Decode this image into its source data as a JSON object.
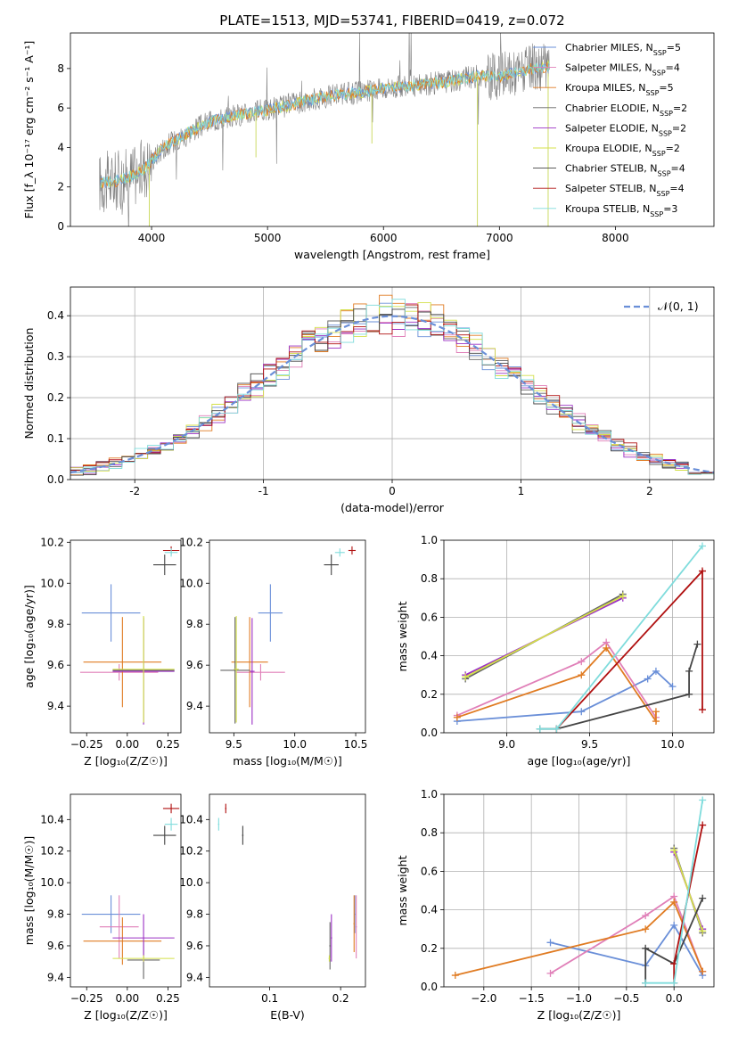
{
  "colors": {
    "chabrier_miles": "#6a8fd8",
    "salpeter_miles": "#e07fb8",
    "kroupa_miles": "#e07b22",
    "chabrier_elodie": "#666666",
    "salpeter_elodie": "#9b30c4",
    "kroupa_elodie": "#d4e04a",
    "chabrier_stelib": "#444444",
    "salpeter_stelib": "#b01010",
    "kroupa_stelib": "#7fdcdc",
    "gauss": "#6a8fd8",
    "grid": "#b0b0b0",
    "spectrum": "#808080"
  },
  "chart_data": [
    {
      "id": "spectrum",
      "type": "line",
      "title": "PLATE=1513, MJD=53741, FIBERID=0419, z=0.072",
      "xlabel": "wavelength [Angstrom, rest frame]",
      "ylabel": "Flux [f_λ 10⁻¹⁷ erg cm⁻² s⁻¹ A⁻¹]",
      "xlim": [
        3300,
        8850
      ],
      "ylim": [
        0,
        9.8
      ],
      "xticks": [
        4000,
        5000,
        6000,
        7000,
        8000
      ],
      "yticks": [
        0,
        2,
        4,
        6,
        8
      ],
      "legend_position": "top-right",
      "legend": [
        {
          "label": "Chabrier MILES, N",
          "sub": "SSP",
          "suffix": "=5",
          "color_key": "chabrier_miles"
        },
        {
          "label": "Salpeter MILES, N",
          "sub": "SSP",
          "suffix": "=4",
          "color_key": "salpeter_miles"
        },
        {
          "label": "Kroupa MILES, N",
          "sub": "SSP",
          "suffix": "=5",
          "color_key": "kroupa_miles"
        },
        {
          "label": "Chabrier ELODIE, N",
          "sub": "SSP",
          "suffix": "=2",
          "color_key": "chabrier_elodie"
        },
        {
          "label": "Salpeter ELODIE, N",
          "sub": "SSP",
          "suffix": "=2",
          "color_key": "salpeter_elodie"
        },
        {
          "label": "Kroupa ELODIE, N",
          "sub": "SSP",
          "suffix": "=2",
          "color_key": "kroupa_elodie"
        },
        {
          "label": "Chabrier STELIB, N",
          "sub": "SSP",
          "suffix": "=4",
          "color_key": "chabrier_stelib"
        },
        {
          "label": "Salpeter STELIB, N",
          "sub": "SSP",
          "suffix": "=4",
          "color_key": "salpeter_stelib"
        },
        {
          "label": "Kroupa STELIB, N",
          "sub": "SSP",
          "suffix": "=3",
          "color_key": "kroupa_stelib"
        }
      ],
      "continuum": [
        [
          3550,
          2.2
        ],
        [
          3700,
          2.3
        ],
        [
          3850,
          2.6
        ],
        [
          3950,
          3.0
        ],
        [
          4100,
          4.0
        ],
        [
          4300,
          4.7
        ],
        [
          4500,
          5.3
        ],
        [
          4700,
          5.6
        ],
        [
          5000,
          5.9
        ],
        [
          5300,
          6.3
        ],
        [
          5500,
          6.6
        ],
        [
          5800,
          6.8
        ],
        [
          6000,
          7.0
        ],
        [
          6200,
          7.1
        ],
        [
          6500,
          7.3
        ],
        [
          6800,
          7.6
        ],
        [
          7000,
          7.6
        ],
        [
          7200,
          7.9
        ],
        [
          7430,
          8.1
        ]
      ]
    },
    {
      "id": "residuals",
      "type": "line",
      "xlabel": "(data-model)/error",
      "ylabel": "Normed distribution",
      "xlim": [
        -2.5,
        2.5
      ],
      "ylim": [
        0,
        0.47
      ],
      "xticks": [
        -2,
        -1,
        0,
        1,
        2
      ],
      "yticks": [
        0.0,
        0.1,
        0.2,
        0.3,
        0.4
      ],
      "grid": true,
      "legend_position": "top-right",
      "legend_label": "𝒩(0, 1)",
      "histogram": {
        "bin_width": 0.1,
        "mean": 0.0,
        "sigma": 1.0
      }
    },
    {
      "id": "age_vs_Z",
      "type": "scatter",
      "xlabel": "Z [log₁₀(Z/Z☉)]",
      "ylabel": "age  [log₁₀(age/yr)]",
      "xlim": [
        -0.35,
        0.33
      ],
      "ylim": [
        9.27,
        10.21
      ],
      "xticks": [
        -0.25,
        0.0,
        0.25
      ],
      "xticklabels": [
        "−0.25",
        "0.00",
        "0.25"
      ],
      "yticks": [
        9.4,
        9.6,
        9.8,
        10.0,
        10.2
      ],
      "points": [
        {
          "color_key": "chabrier_miles",
          "x": -0.1,
          "xerr": 0.18,
          "y": 9.855,
          "yerr": 0.14
        },
        {
          "color_key": "salpeter_miles",
          "x": -0.05,
          "xerr": 0.24,
          "y": 9.565,
          "yerr": 0.04
        },
        {
          "color_key": "kroupa_miles",
          "x": -0.03,
          "xerr": 0.24,
          "y": 9.615,
          "yerr": 0.22
        },
        {
          "color_key": "chabrier_elodie",
          "x": 0.1,
          "xerr": 0.19,
          "y": 9.575,
          "yerr": 0.26
        },
        {
          "color_key": "salpeter_elodie",
          "x": 0.1,
          "xerr": 0.19,
          "y": 9.57,
          "yerr": 0.26
        },
        {
          "color_key": "kroupa_elodie",
          "x": 0.1,
          "xerr": 0.19,
          "y": 9.58,
          "yerr": 0.26
        },
        {
          "color_key": "chabrier_stelib",
          "x": 0.23,
          "xerr": 0.07,
          "y": 10.09,
          "yerr": 0.05
        },
        {
          "color_key": "salpeter_stelib",
          "x": 0.27,
          "xerr": 0.05,
          "y": 10.16,
          "yerr": 0.02
        },
        {
          "color_key": "kroupa_stelib",
          "x": 0.27,
          "xerr": 0.04,
          "y": 10.15,
          "yerr": 0.02
        }
      ]
    },
    {
      "id": "age_vs_mass",
      "type": "scatter",
      "xlabel": "mass [log₁₀(M/M☉)]",
      "ylabel": "",
      "xlim": [
        9.3,
        10.58
      ],
      "ylim": [
        9.27,
        10.21
      ],
      "xticks": [
        9.5,
        10.0,
        10.5
      ],
      "yticks": [
        9.4,
        9.6,
        9.8,
        10.0,
        10.2
      ],
      "points": [
        {
          "color_key": "chabrier_miles",
          "x": 9.8,
          "xerr": 0.1,
          "y": 9.855,
          "yerr": 0.14
        },
        {
          "color_key": "salpeter_miles",
          "x": 9.72,
          "xerr": 0.2,
          "y": 9.565,
          "yerr": 0.04
        },
        {
          "color_key": "kroupa_miles",
          "x": 9.63,
          "xerr": 0.15,
          "y": 9.615,
          "yerr": 0.22
        },
        {
          "color_key": "chabrier_elodie",
          "x": 9.51,
          "xerr": 0.12,
          "y": 9.575,
          "yerr": 0.26
        },
        {
          "color_key": "salpeter_elodie",
          "x": 9.65,
          "xerr": 0.02,
          "y": 9.57,
          "yerr": 0.26
        },
        {
          "color_key": "kroupa_elodie",
          "x": 9.52,
          "xerr": 0.02,
          "y": 9.58,
          "yerr": 0.26
        },
        {
          "color_key": "chabrier_stelib",
          "x": 10.3,
          "xerr": 0.06,
          "y": 10.09,
          "yerr": 0.05
        },
        {
          "color_key": "salpeter_stelib",
          "x": 10.47,
          "xerr": 0.03,
          "y": 10.16,
          "yerr": 0.02
        },
        {
          "color_key": "kroupa_stelib",
          "x": 10.37,
          "xerr": 0.04,
          "y": 10.15,
          "yerr": 0.02
        }
      ]
    },
    {
      "id": "massweight_vs_age",
      "type": "line",
      "xlabel": "age  [log₁₀(age/yr)]",
      "ylabel": "mass weight",
      "xlim": [
        8.62,
        10.25
      ],
      "ylim": [
        0,
        1.0
      ],
      "xticks": [
        9.0,
        9.5,
        10.0
      ],
      "yticks": [
        0.0,
        0.2,
        0.4,
        0.6,
        0.8,
        1.0
      ],
      "grid": true,
      "series": [
        {
          "color_key": "chabrier_miles",
          "points": [
            [
              8.7,
              0.06
            ],
            [
              9.45,
              0.11
            ],
            [
              9.85,
              0.28
            ],
            [
              9.9,
              0.32
            ],
            [
              10.0,
              0.24
            ]
          ]
        },
        {
          "color_key": "salpeter_miles",
          "points": [
            [
              8.7,
              0.09
            ],
            [
              9.45,
              0.37
            ],
            [
              9.6,
              0.47
            ],
            [
              9.9,
              0.08
            ]
          ]
        },
        {
          "color_key": "kroupa_miles",
          "points": [
            [
              8.7,
              0.08
            ],
            [
              9.45,
              0.3
            ],
            [
              9.6,
              0.44
            ],
            [
              9.9,
              0.06
            ],
            [
              9.9,
              0.11
            ]
          ]
        },
        {
          "color_key": "chabrier_elodie",
          "points": [
            [
              8.75,
              0.28
            ],
            [
              9.7,
              0.72
            ]
          ]
        },
        {
          "color_key": "salpeter_elodie",
          "points": [
            [
              8.75,
              0.3
            ],
            [
              9.7,
              0.7
            ]
          ]
        },
        {
          "color_key": "kroupa_elodie",
          "points": [
            [
              8.75,
              0.29
            ],
            [
              9.7,
              0.71
            ]
          ]
        },
        {
          "color_key": "chabrier_stelib",
          "points": [
            [
              9.2,
              0.02
            ],
            [
              9.3,
              0.02
            ],
            [
              10.1,
              0.2
            ],
            [
              10.1,
              0.32
            ],
            [
              10.15,
              0.46
            ]
          ]
        },
        {
          "color_key": "salpeter_stelib",
          "points": [
            [
              9.3,
              0.02
            ],
            [
              10.18,
              0.84
            ],
            [
              10.18,
              0.12
            ]
          ]
        },
        {
          "color_key": "kroupa_stelib",
          "points": [
            [
              9.2,
              0.02
            ],
            [
              9.3,
              0.02
            ],
            [
              10.18,
              0.97
            ]
          ]
        }
      ]
    },
    {
      "id": "mass_vs_Z",
      "type": "scatter",
      "xlabel": "Z [log₁₀(Z/Z☉)]",
      "ylabel": "mass [log₁₀(M/M☉)]",
      "xlim": [
        -0.35,
        0.33
      ],
      "ylim": [
        9.34,
        10.56
      ],
      "xticks": [
        -0.25,
        0.0,
        0.25
      ],
      "xticklabels": [
        "−0.25",
        "0.00",
        "0.25"
      ],
      "yticks": [
        9.4,
        9.6,
        9.8,
        10.0,
        10.2,
        10.4
      ],
      "points": [
        {
          "color_key": "chabrier_miles",
          "x": -0.1,
          "xerr": 0.18,
          "y": 9.8,
          "yerr": 0.12
        },
        {
          "color_key": "salpeter_miles",
          "x": -0.05,
          "xerr": 0.12,
          "y": 9.72,
          "yerr": 0.2
        },
        {
          "color_key": "kroupa_miles",
          "x": -0.03,
          "xerr": 0.24,
          "y": 9.63,
          "yerr": 0.15
        },
        {
          "color_key": "chabrier_elodie",
          "x": 0.1,
          "xerr": 0.1,
          "y": 9.51,
          "yerr": 0.12
        },
        {
          "color_key": "salpeter_elodie",
          "x": 0.1,
          "xerr": 0.19,
          "y": 9.65,
          "yerr": 0.15
        },
        {
          "color_key": "kroupa_elodie",
          "x": 0.1,
          "xerr": 0.19,
          "y": 9.52,
          "yerr": 0.02
        },
        {
          "color_key": "chabrier_stelib",
          "x": 0.23,
          "xerr": 0.07,
          "y": 10.3,
          "yerr": 0.06
        },
        {
          "color_key": "salpeter_stelib",
          "x": 0.27,
          "xerr": 0.05,
          "y": 10.47,
          "yerr": 0.03
        },
        {
          "color_key": "kroupa_stelib",
          "x": 0.27,
          "xerr": 0.04,
          "y": 10.37,
          "yerr": 0.04
        }
      ]
    },
    {
      "id": "mass_vs_ebv",
      "type": "scatter",
      "xlabel": "E(B-V)",
      "ylabel": "",
      "xlim": [
        0.015,
        0.235
      ],
      "ylim": [
        9.34,
        10.56
      ],
      "xticks": [
        0.1,
        0.2
      ],
      "yticks": [
        9.4,
        9.6,
        9.8,
        10.0,
        10.2,
        10.4
      ],
      "points": [
        {
          "color_key": "chabrier_miles",
          "x": 0.22,
          "xerr": 0.001,
          "y": 9.8,
          "yerr": 0.12
        },
        {
          "color_key": "salpeter_miles",
          "x": 0.222,
          "xerr": 0.001,
          "y": 9.72,
          "yerr": 0.2
        },
        {
          "color_key": "kroupa_miles",
          "x": 0.219,
          "xerr": 0.001,
          "y": 9.74,
          "yerr": 0.18
        },
        {
          "color_key": "chabrier_elodie",
          "x": 0.185,
          "xerr": 0.001,
          "y": 9.6,
          "yerr": 0.15
        },
        {
          "color_key": "salpeter_elodie",
          "x": 0.187,
          "xerr": 0.001,
          "y": 9.65,
          "yerr": 0.15
        },
        {
          "color_key": "kroupa_elodie",
          "x": 0.184,
          "xerr": 0.001,
          "y": 9.52,
          "yerr": 0.02
        },
        {
          "color_key": "chabrier_stelib",
          "x": 0.062,
          "xerr": 0.001,
          "y": 10.3,
          "yerr": 0.06
        },
        {
          "color_key": "salpeter_stelib",
          "x": 0.038,
          "xerr": 0.001,
          "y": 10.47,
          "yerr": 0.03
        },
        {
          "color_key": "kroupa_stelib",
          "x": 0.028,
          "xerr": 0.001,
          "y": 10.37,
          "yerr": 0.04
        }
      ]
    },
    {
      "id": "massweight_vs_Z",
      "type": "line",
      "xlabel": "Z [log₁₀(Z/Z☉)]",
      "ylabel": "mass weight",
      "xlim": [
        -2.42,
        0.42
      ],
      "ylim": [
        0,
        1.0
      ],
      "xticks": [
        -2.0,
        -1.5,
        -1.0,
        -0.5,
        0.0
      ],
      "xticklabels": [
        "−2.0",
        "−1.5",
        "−1.0",
        "−0.5",
        "0.0"
      ],
      "yticks": [
        0.0,
        0.2,
        0.4,
        0.6,
        0.8,
        1.0
      ],
      "grid": true,
      "series": [
        {
          "color_key": "chabrier_miles",
          "points": [
            [
              -1.3,
              0.23
            ],
            [
              -0.3,
              0.11
            ],
            [
              0.0,
              0.32
            ],
            [
              0.3,
              0.06
            ]
          ]
        },
        {
          "color_key": "salpeter_miles",
          "points": [
            [
              -1.3,
              0.07
            ],
            [
              -0.3,
              0.37
            ],
            [
              0.0,
              0.47
            ],
            [
              0.3,
              0.08
            ]
          ]
        },
        {
          "color_key": "kroupa_miles",
          "points": [
            [
              -2.3,
              0.06
            ],
            [
              -0.3,
              0.3
            ],
            [
              0.0,
              0.44
            ],
            [
              0.3,
              0.08
            ]
          ]
        },
        {
          "color_key": "chabrier_elodie",
          "points": [
            [
              0.0,
              0.72
            ],
            [
              0.3,
              0.28
            ]
          ]
        },
        {
          "color_key": "salpeter_elodie",
          "points": [
            [
              0.0,
              0.7
            ],
            [
              0.3,
              0.3
            ]
          ]
        },
        {
          "color_key": "kroupa_elodie",
          "points": [
            [
              0.0,
              0.71
            ],
            [
              0.3,
              0.29
            ]
          ]
        },
        {
          "color_key": "chabrier_stelib",
          "points": [
            [
              -0.3,
              0.02
            ],
            [
              -0.3,
              0.2
            ],
            [
              0.0,
              0.12
            ],
            [
              0.3,
              0.46
            ]
          ]
        },
        {
          "color_key": "salpeter_stelib",
          "points": [
            [
              0.0,
              0.02
            ],
            [
              0.0,
              0.12
            ],
            [
              0.3,
              0.84
            ]
          ]
        },
        {
          "color_key": "kroupa_stelib",
          "points": [
            [
              -0.3,
              0.02
            ],
            [
              0.0,
              0.02
            ],
            [
              0.3,
              0.97
            ]
          ]
        }
      ]
    }
  ]
}
